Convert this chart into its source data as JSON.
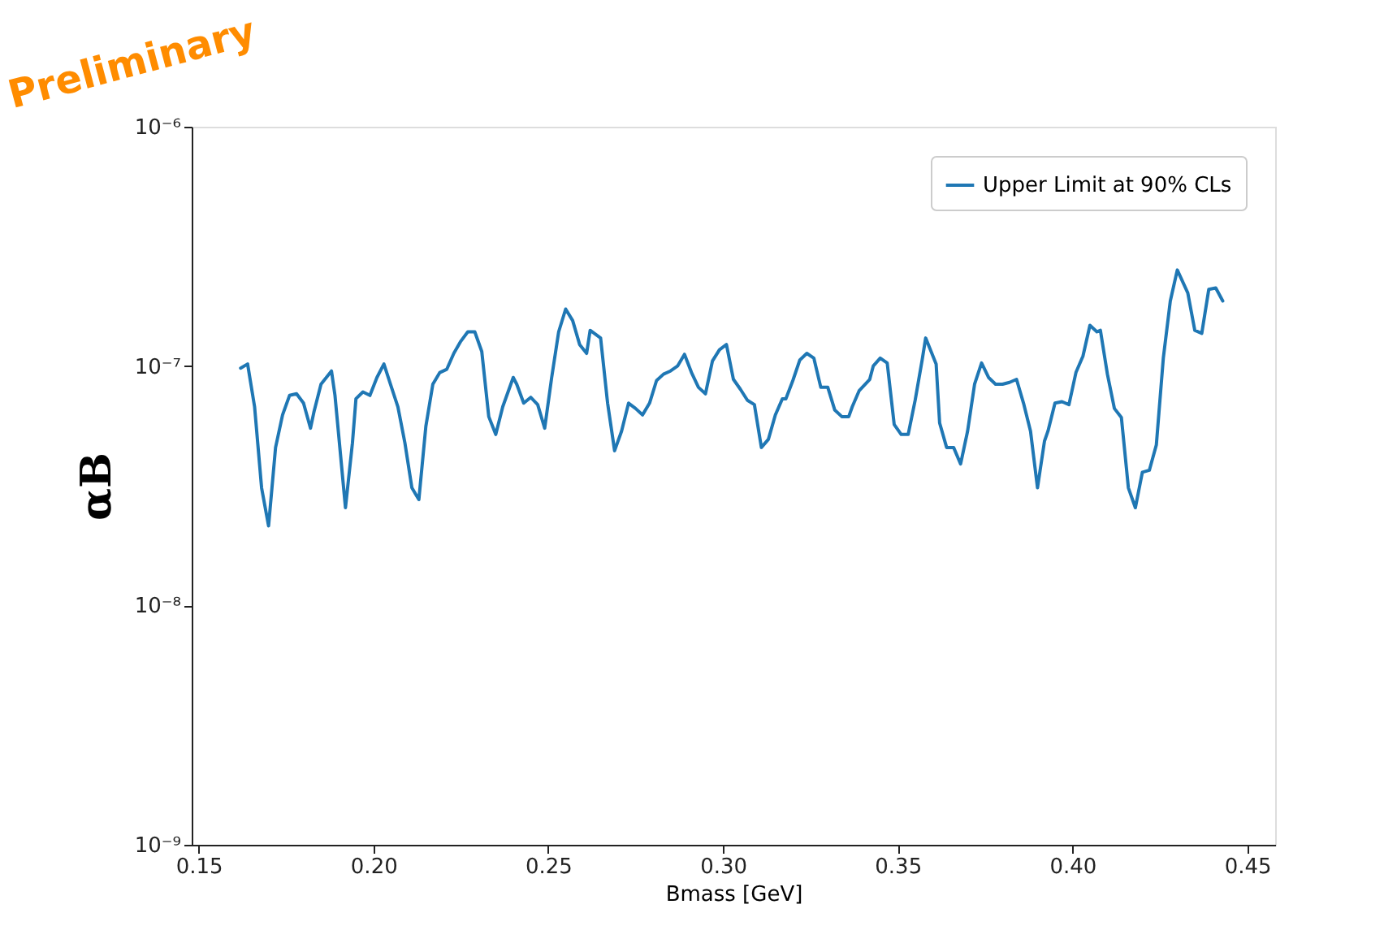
{
  "chart_data": {
    "type": "line",
    "xlabel": "Bmass [GeV]",
    "ylabel": "αB",
    "log": true,
    "legend": "top right",
    "grid": false,
    "annotations": [
      "Preliminary"
    ],
    "xlim": [
      0.148,
      0.458
    ],
    "ylim": [
      1e-09,
      1e-06
    ],
    "xticks": [
      0.15,
      {
        "value": 0.2,
        "label": "0.20"
      },
      0.25,
      {
        "value": 0.3,
        "label": "0.30"
      },
      0.35,
      {
        "value": 0.4,
        "label": "0.40"
      },
      0.45
    ],
    "yticks": [
      {
        "value": 1e-09,
        "label": "10⁻⁹"
      },
      {
        "value": 1e-08,
        "label": "10⁻⁸"
      },
      {
        "value": 1e-07,
        "label": "10⁻⁷"
      },
      {
        "value": 1e-06,
        "label": "10⁻⁶"
      }
    ],
    "series": [
      {
        "name": "Upper Limit at 90% CLs",
        "color": "#1f77b4",
        "x": [
          0.162,
          0.164,
          0.166,
          0.168,
          0.17,
          0.172,
          0.174,
          0.176,
          0.178,
          0.18,
          0.182,
          0.183,
          0.185,
          0.188,
          0.189,
          0.192,
          0.194,
          0.195,
          0.197,
          0.199,
          0.201,
          0.203,
          0.205,
          0.207,
          0.209,
          0.211,
          0.213,
          0.215,
          0.217,
          0.219,
          0.221,
          0.223,
          0.225,
          0.227,
          0.229,
          0.231,
          0.233,
          0.235,
          0.237,
          0.24,
          0.241,
          0.243,
          0.245,
          0.247,
          0.249,
          0.251,
          0.253,
          0.255,
          0.257,
          0.259,
          0.261,
          0.262,
          0.265,
          0.267,
          0.269,
          0.271,
          0.273,
          0.275,
          0.277,
          0.279,
          0.281,
          0.283,
          0.285,
          0.287,
          0.289,
          0.291,
          0.293,
          0.295,
          0.297,
          0.299,
          0.301,
          0.303,
          0.305,
          0.307,
          0.309,
          0.311,
          0.313,
          0.315,
          0.317,
          0.318,
          0.32,
          0.322,
          0.324,
          0.326,
          0.328,
          0.33,
          0.332,
          0.334,
          0.336,
          0.337,
          0.339,
          0.342,
          0.343,
          0.345,
          0.347,
          0.349,
          0.351,
          0.353,
          0.355,
          0.357,
          0.358,
          0.361,
          0.362,
          0.364,
          0.366,
          0.368,
          0.37,
          0.372,
          0.374,
          0.376,
          0.378,
          0.38,
          0.382,
          0.384,
          0.386,
          0.388,
          0.39,
          0.392,
          0.393,
          0.395,
          0.397,
          0.399,
          0.401,
          0.403,
          0.405,
          0.407,
          0.408,
          0.41,
          0.412,
          0.414,
          0.416,
          0.418,
          0.42,
          0.422,
          0.424,
          0.426,
          0.428,
          0.43,
          0.433,
          0.435,
          0.437,
          0.439,
          0.441,
          0.443
        ],
        "values": [
          9.8e-08,
          1.02e-07,
          6.76e-08,
          3.1e-08,
          2.15e-08,
          4.57e-08,
          6.25e-08,
          7.54e-08,
          7.66e-08,
          7e-08,
          5.5e-08,
          6.45e-08,
          8.4e-08,
          9.54e-08,
          7.54e-08,
          2.56e-08,
          4.78e-08,
          7.3e-08,
          7.8e-08,
          7.54e-08,
          8.96e-08,
          1.02e-07,
          8.3e-08,
          6.76e-08,
          4.78e-08,
          3.1e-08,
          2.77e-08,
          5.6e-08,
          8.4e-08,
          9.4e-08,
          9.7e-08,
          1.13e-07,
          1.27e-07,
          1.39e-07,
          1.39e-07,
          1.15e-07,
          6.15e-08,
          5.18e-08,
          6.76e-08,
          8.96e-08,
          8.4e-08,
          7e-08,
          7.4e-08,
          6.9e-08,
          5.5e-08,
          8.96e-08,
          1.39e-07,
          1.73e-07,
          1.55e-07,
          1.23e-07,
          1.13e-07,
          1.41e-07,
          1.31e-07,
          7e-08,
          4.43e-08,
          5.35e-08,
          7e-08,
          6.65e-08,
          6.25e-08,
          7e-08,
          8.7e-08,
          9.25e-08,
          9.54e-08,
          1e-07,
          1.12e-07,
          9.4e-08,
          8.15e-08,
          7.66e-08,
          1.05e-07,
          1.17e-07,
          1.23e-07,
          8.8e-08,
          8e-08,
          7.2e-08,
          6.9e-08,
          4.57e-08,
          4.94e-08,
          6.25e-08,
          7.3e-08,
          7.3e-08,
          8.7e-08,
          1.06e-07,
          1.13e-07,
          1.08e-07,
          8.15e-08,
          8.15e-08,
          6.55e-08,
          6.15e-08,
          6.15e-08,
          6.76e-08,
          7.9e-08,
          8.8e-08,
          1e-07,
          1.08e-07,
          1.03e-07,
          5.7e-08,
          5.18e-08,
          5.18e-08,
          7.2e-08,
          1.06e-07,
          1.31e-07,
          1.02e-07,
          5.78e-08,
          4.57e-08,
          4.57e-08,
          3.9e-08,
          5.35e-08,
          8.4e-08,
          1.03e-07,
          8.96e-08,
          8.4e-08,
          8.4e-08,
          8.55e-08,
          8.8e-08,
          7e-08,
          5.35e-08,
          3.1e-08,
          4.86e-08,
          5.35e-08,
          7e-08,
          7.1e-08,
          6.9e-08,
          9.4e-08,
          1.1e-07,
          1.48e-07,
          1.39e-07,
          1.41e-07,
          9.25e-08,
          6.65e-08,
          6.1e-08,
          3.1e-08,
          2.56e-08,
          3.6e-08,
          3.67e-08,
          4.68e-08,
          1.08e-07,
          1.87e-07,
          2.52e-07,
          2.02e-07,
          1.41e-07,
          1.37e-07,
          2.09e-07,
          2.12e-07,
          1.87e-07
        ]
      }
    ]
  }
}
